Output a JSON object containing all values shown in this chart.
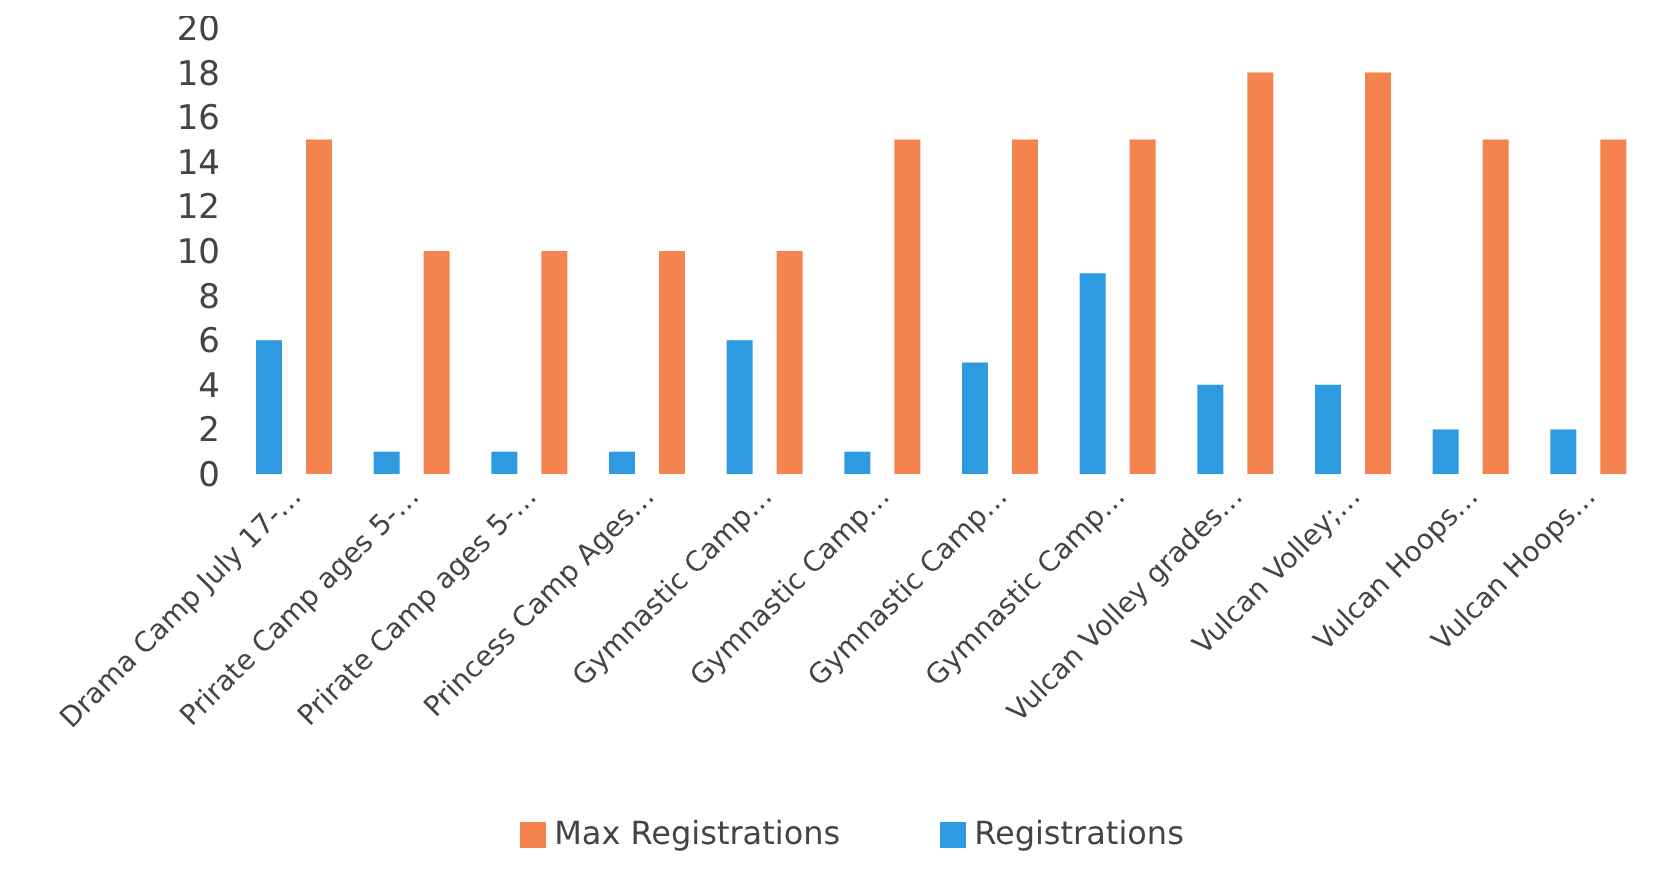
{
  "chart_data": {
    "type": "bar",
    "categories": [
      "Drama Camp July 17-…",
      "Prirate Camp ages 5-…",
      "Prirate Camp ages 5-…",
      "Princess Camp Ages…",
      "Gymnastic Camp…",
      "Gymnastic Camp…",
      "Gymnastic Camp…",
      "Gymnastic Camp…",
      "Vulcan Volley grades…",
      "Vulcan Volley;…",
      "Vulcan Hoops…",
      "Vulcan Hoops…"
    ],
    "series": [
      {
        "name": "Registrations",
        "color": "#2e9be0",
        "values": [
          6,
          1,
          1,
          1,
          6,
          1,
          5,
          9,
          4,
          4,
          2,
          2
        ]
      },
      {
        "name": "Max Registrations",
        "color": "#f5834f",
        "values": [
          15,
          10,
          10,
          10,
          10,
          15,
          15,
          15,
          18,
          18,
          15,
          15
        ]
      }
    ],
    "ylim": [
      0,
      20
    ],
    "yticks": [
      0,
      2,
      4,
      6,
      8,
      10,
      12,
      14,
      16,
      18,
      20
    ],
    "legend": "bottom"
  }
}
